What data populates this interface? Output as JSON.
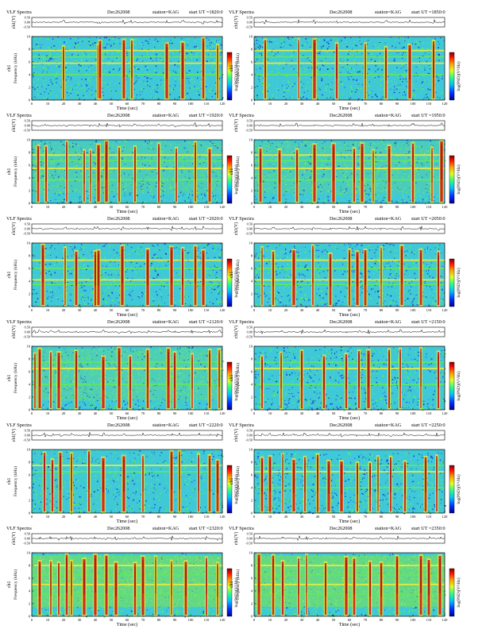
{
  "page": {
    "header_left": "VLF Spectra",
    "date": "Dec262008",
    "station": "station=KAG",
    "start_prefix": "start  UT  ="
  },
  "common": {
    "line_ylabel": "ch1(V)",
    "spec_ylabel": "Frequency  (kHz)",
    "spec_ylabel_prefix": "ch1",
    "xlabel": "Time  (sec)",
    "colorbar_label": "log(PSD)(V²/Hz)",
    "line_ticks": [
      "0.50",
      "0.00",
      "-0.50"
    ],
    "freq_ticks": [
      "10",
      "8",
      "6",
      "4",
      "2",
      "0"
    ],
    "time_ticks": [
      "0",
      "10",
      "20",
      "30",
      "40",
      "50",
      "60",
      "70",
      "80",
      "90",
      "100",
      "110",
      "120"
    ]
  },
  "colors": {
    "background": "#3ec8d8",
    "noise_blue": "#1e4ed8",
    "noise_green": "#5cf05a",
    "band_green": "#62e862",
    "band_yellow": "#f2ec3a",
    "burst_red": "#d01818",
    "burst_dark": "#500000",
    "hiss_green": "#76e05c"
  },
  "chart_data": [
    {
      "type": "heatmap",
      "start_ut": "1820:0",
      "x": [
        0,
        120
      ],
      "xlabel": "Time (sec)",
      "ylabel": "Frequency (kHz)",
      "ylim": [
        0,
        10
      ],
      "line_ylim": [
        -0.5,
        0.5
      ],
      "colorbar": "log(PSD)(V²/Hz)",
      "grid": false,
      "legend": "none",
      "bursts_sec": [
        20,
        42,
        43,
        58,
        63,
        85,
        95,
        108,
        117
      ],
      "bands_khz": [
        4.0,
        5.8,
        6.8,
        7.8
      ],
      "noise_level": 0.4,
      "hiss_level": 0.15,
      "cutoff_khz": 10.0
    },
    {
      "type": "heatmap",
      "start_ut": "1850:0",
      "x": [
        0,
        120
      ],
      "xlabel": "Time (sec)",
      "ylabel": "Frequency (kHz)",
      "ylim": [
        0,
        10
      ],
      "line_ylim": [
        -0.5,
        0.5
      ],
      "colorbar": "log(PSD)(V²/Hz)",
      "grid": false,
      "legend": "none",
      "bursts_sec": [
        7,
        28,
        38,
        52,
        70,
        83,
        98,
        113
      ],
      "bands_khz": [
        4.0,
        5.8,
        6.8,
        7.8
      ],
      "noise_level": 0.4,
      "hiss_level": 0.15,
      "cutoff_khz": 10.0
    },
    {
      "type": "heatmap",
      "start_ut": "1920:0",
      "x": [
        0,
        120
      ],
      "xlabel": "Time (sec)",
      "ylabel": "Frequency (kHz)",
      "ylim": [
        0,
        10
      ],
      "line_ylim": [
        -0.5,
        0.5
      ],
      "colorbar": "log(PSD)(V²/Hz)",
      "grid": false,
      "legend": "none",
      "bursts_sec": [
        4,
        9,
        22,
        33,
        37,
        42,
        47,
        55,
        65,
        80,
        91,
        103,
        112
      ],
      "bands_khz": [
        3.7,
        5.5,
        6.7,
        7.6
      ],
      "noise_level": 0.35,
      "hiss_level": 0.25,
      "cutoff_khz": 10.0
    },
    {
      "type": "heatmap",
      "start_ut": "1950:0",
      "x": [
        0,
        120
      ],
      "xlabel": "Time (sec)",
      "ylabel": "Frequency (kHz)",
      "ylim": [
        0,
        10
      ],
      "line_ylim": [
        -0.5,
        0.5
      ],
      "colorbar": "log(PSD)(V²/Hz)",
      "grid": false,
      "legend": "none",
      "bursts_sec": [
        4,
        16,
        27,
        38,
        50,
        63,
        68,
        75,
        85,
        100,
        112,
        118
      ],
      "bands_khz": [
        3.7,
        5.5,
        6.7,
        7.6
      ],
      "noise_level": 0.35,
      "hiss_level": 0.25,
      "cutoff_khz": 10.0
    },
    {
      "type": "heatmap",
      "start_ut": "2020:0",
      "x": [
        0,
        120
      ],
      "xlabel": "Time (sec)",
      "ylabel": "Frequency (kHz)",
      "ylim": [
        0,
        10
      ],
      "line_ylim": [
        -0.5,
        0.5
      ],
      "colorbar": "log(PSD)(V²/Hz)",
      "grid": false,
      "legend": "none",
      "bursts_sec": [
        7,
        21,
        28,
        40,
        42,
        57,
        73,
        88,
        95,
        103,
        108
      ],
      "bands_khz": [
        3.5,
        4.2,
        6.0,
        7.3
      ],
      "noise_level": 0.4,
      "hiss_level": 0.2,
      "cutoff_khz": 10.0
    },
    {
      "type": "heatmap",
      "start_ut": "2050:0",
      "x": [
        0,
        120
      ],
      "xlabel": "Time (sec)",
      "ylabel": "Frequency (kHz)",
      "ylim": [
        0,
        10
      ],
      "line_ylim": [
        -0.5,
        0.5
      ],
      "colorbar": "log(PSD)(V²/Hz)",
      "grid": false,
      "legend": "none",
      "bursts_sec": [
        5,
        12,
        25,
        37,
        48,
        60,
        65,
        70,
        80,
        93,
        105,
        116
      ],
      "bands_khz": [
        3.5,
        4.2,
        6.0,
        7.3
      ],
      "noise_level": 0.4,
      "hiss_level": 0.2,
      "cutoff_khz": 10.0
    },
    {
      "type": "heatmap",
      "start_ut": "2120:0",
      "x": [
        0,
        120
      ],
      "xlabel": "Time (sec)",
      "ylabel": "Frequency (kHz)",
      "ylim": [
        0,
        10
      ],
      "line_ylim": [
        -0.5,
        0.5
      ],
      "colorbar": "log(PSD)(V²/Hz)",
      "grid": false,
      "legend": "none",
      "bursts_sec": [
        2,
        5,
        12,
        17,
        28,
        45,
        55,
        62,
        73,
        86,
        90,
        101,
        112,
        118
      ],
      "bands_khz": [
        4.0,
        6.5,
        7.5
      ],
      "noise_level": 0.35,
      "hiss_level": 0.3,
      "cutoff_khz": 10.0
    },
    {
      "type": "heatmap",
      "start_ut": "2150:0",
      "x": [
        0,
        120
      ],
      "xlabel": "Time (sec)",
      "ylabel": "Frequency (kHz)",
      "ylim": [
        0,
        10
      ],
      "line_ylim": [
        -0.5,
        0.5
      ],
      "colorbar": "log(PSD)(V²/Hz)",
      "grid": false,
      "legend": "none",
      "bursts_sec": [
        5,
        17,
        30,
        44,
        58,
        66,
        72,
        85,
        92,
        105,
        116
      ],
      "bands_khz": [
        4.0,
        6.5,
        7.5
      ],
      "noise_level": 0.45,
      "hiss_level": 0.1,
      "cutoff_khz": 10.0
    },
    {
      "type": "heatmap",
      "start_ut": "2220:0",
      "x": [
        0,
        120
      ],
      "xlabel": "Time (sec)",
      "ylabel": "Frequency (kHz)",
      "ylim": [
        0,
        10
      ],
      "line_ylim": [
        -0.5,
        0.5
      ],
      "colorbar": "log(PSD)(V²/Hz)",
      "grid": false,
      "legend": "none",
      "bursts_sec": [
        8,
        13,
        18,
        25,
        36,
        45,
        58,
        70,
        88,
        93,
        105,
        112,
        117
      ],
      "bands_khz": [
        6.5,
        7.5
      ],
      "noise_level": 0.3,
      "hiss_level": 0.1,
      "cutoff_khz": 10.0
    },
    {
      "type": "heatmap",
      "start_ut": "2250:0",
      "x": [
        0,
        120
      ],
      "xlabel": "Time (sec)",
      "ylabel": "Frequency (kHz)",
      "ylim": [
        0,
        10
      ],
      "line_ylim": [
        -0.5,
        0.5
      ],
      "colorbar": "log(PSD)(V²/Hz)",
      "grid": false,
      "legend": "none",
      "bursts_sec": [
        5,
        10,
        18,
        25,
        32,
        40,
        47,
        55,
        65,
        73,
        78,
        86,
        95,
        108,
        115
      ],
      "bands_khz": [
        4.0,
        6.5,
        7.5
      ],
      "noise_level": 0.55,
      "hiss_level": 0.05,
      "cutoff_khz": 9.6
    },
    {
      "type": "heatmap",
      "start_ut": "2320:0",
      "x": [
        0,
        120
      ],
      "xlabel": "Time (sec)",
      "ylabel": "Frequency (kHz)",
      "ylim": [
        0,
        10
      ],
      "line_ylim": [
        -0.5,
        0.5
      ],
      "colorbar": "log(PSD)(V²/Hz)",
      "grid": false,
      "legend": "none",
      "bursts_sec": [
        5,
        12,
        17,
        22,
        25,
        33,
        40,
        47,
        53,
        65,
        70,
        78,
        88,
        97,
        110,
        117
      ],
      "bands_khz": [
        3.5,
        5.0,
        6.5,
        8.0
      ],
      "noise_level": 0.15,
      "hiss_level": 0.75,
      "cutoff_khz": 10.0
    },
    {
      "type": "heatmap",
      "start_ut": "2350:0",
      "x": [
        0,
        120
      ],
      "xlabel": "Time (sec)",
      "ylabel": "Frequency (kHz)",
      "ylim": [
        0,
        10
      ],
      "line_ylim": [
        -0.5,
        0.5
      ],
      "colorbar": "log(PSD)(V²/Hz)",
      "grid": false,
      "legend": "none",
      "bursts_sec": [
        3,
        12,
        18,
        28,
        33,
        45,
        58,
        63,
        73,
        80,
        90,
        105,
        110,
        117
      ],
      "bands_khz": [
        3.5,
        5.0,
        6.5,
        8.0
      ],
      "noise_level": 0.15,
      "hiss_level": 0.75,
      "cutoff_khz": 10.0
    }
  ]
}
